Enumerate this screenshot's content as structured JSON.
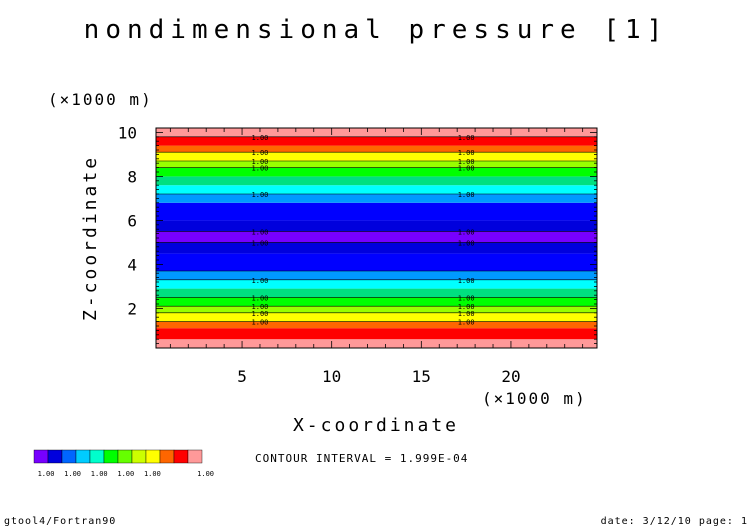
{
  "chart_data": {
    "type": "heatmap",
    "title": "nondimensional pressure [1]",
    "xlabel": "X-coordinate",
    "ylabel": "Z-coordinate",
    "x_unit": "(×1000 m)",
    "y_unit": "(×1000 m)",
    "xlim": [
      0.2,
      24.8
    ],
    "ylim": [
      0.2,
      10.2
    ],
    "xticks": [
      5,
      10,
      15,
      20
    ],
    "yticks": [
      2,
      4,
      6,
      8,
      10
    ],
    "bands": [
      {
        "z0": 0.2,
        "z1": 0.6,
        "color": "#ff9999"
      },
      {
        "z0": 0.6,
        "z1": 1.1,
        "color": "#ff0000"
      },
      {
        "z0": 1.1,
        "z1": 1.4,
        "color": "#ff6600"
      },
      {
        "z0": 1.4,
        "z1": 1.8,
        "color": "#ffff00"
      },
      {
        "z0": 1.8,
        "z1": 2.1,
        "color": "#99ff00"
      },
      {
        "z0": 2.1,
        "z1": 2.5,
        "color": "#00ff00"
      },
      {
        "z0": 2.5,
        "z1": 2.9,
        "color": "#00e080"
      },
      {
        "z0": 2.9,
        "z1": 3.3,
        "color": "#00ffff"
      },
      {
        "z0": 3.3,
        "z1": 3.7,
        "color": "#0099ff"
      },
      {
        "z0": 3.7,
        "z1": 4.5,
        "color": "#0000ff"
      },
      {
        "z0": 4.5,
        "z1": 5.0,
        "color": "#0000dd"
      },
      {
        "z0": 5.0,
        "z1": 5.5,
        "color": "#7700ff"
      },
      {
        "z0": 5.5,
        "z1": 6.0,
        "color": "#0000dd"
      },
      {
        "z0": 6.0,
        "z1": 6.8,
        "color": "#0000ff"
      },
      {
        "z0": 6.8,
        "z1": 7.2,
        "color": "#0099ff"
      },
      {
        "z0": 7.2,
        "z1": 7.6,
        "color": "#00ffff"
      },
      {
        "z0": 7.6,
        "z1": 8.0,
        "color": "#00e080"
      },
      {
        "z0": 8.0,
        "z1": 8.4,
        "color": "#00ff00"
      },
      {
        "z0": 8.4,
        "z1": 8.7,
        "color": "#99ff00"
      },
      {
        "z0": 8.7,
        "z1": 9.1,
        "color": "#ffff00"
      },
      {
        "z0": 9.1,
        "z1": 9.4,
        "color": "#ff6600"
      },
      {
        "z0": 9.4,
        "z1": 9.8,
        "color": "#ff0000"
      },
      {
        "z0": 9.8,
        "z1": 10.2,
        "color": "#ff9999"
      }
    ],
    "contour_label": "1.00",
    "contour_levels_z": [
      1.4,
      1.8,
      2.1,
      2.5,
      3.3,
      3.7,
      5.0,
      5.5,
      7.2,
      8.4,
      8.7,
      9.1,
      9.8
    ],
    "label_x": [
      6,
      17.5
    ],
    "contour_interval_text": "CONTOUR INTERVAL = 1.999E-04",
    "colorbar": {
      "colors": [
        "#7700ff",
        "#0000dd",
        "#0066ff",
        "#00ccff",
        "#00ffcc",
        "#00ff00",
        "#66ff00",
        "#ccff00",
        "#ffff00",
        "#ff6600",
        "#ff0000",
        "#ff9999"
      ],
      "labels": [
        "1.00",
        "1.00",
        "1.00",
        "1.00",
        "1.00",
        "",
        "1.00"
      ]
    }
  },
  "footer": {
    "left": "gtool4/Fortran90",
    "right": "date: 3/12/10 page: 1"
  }
}
